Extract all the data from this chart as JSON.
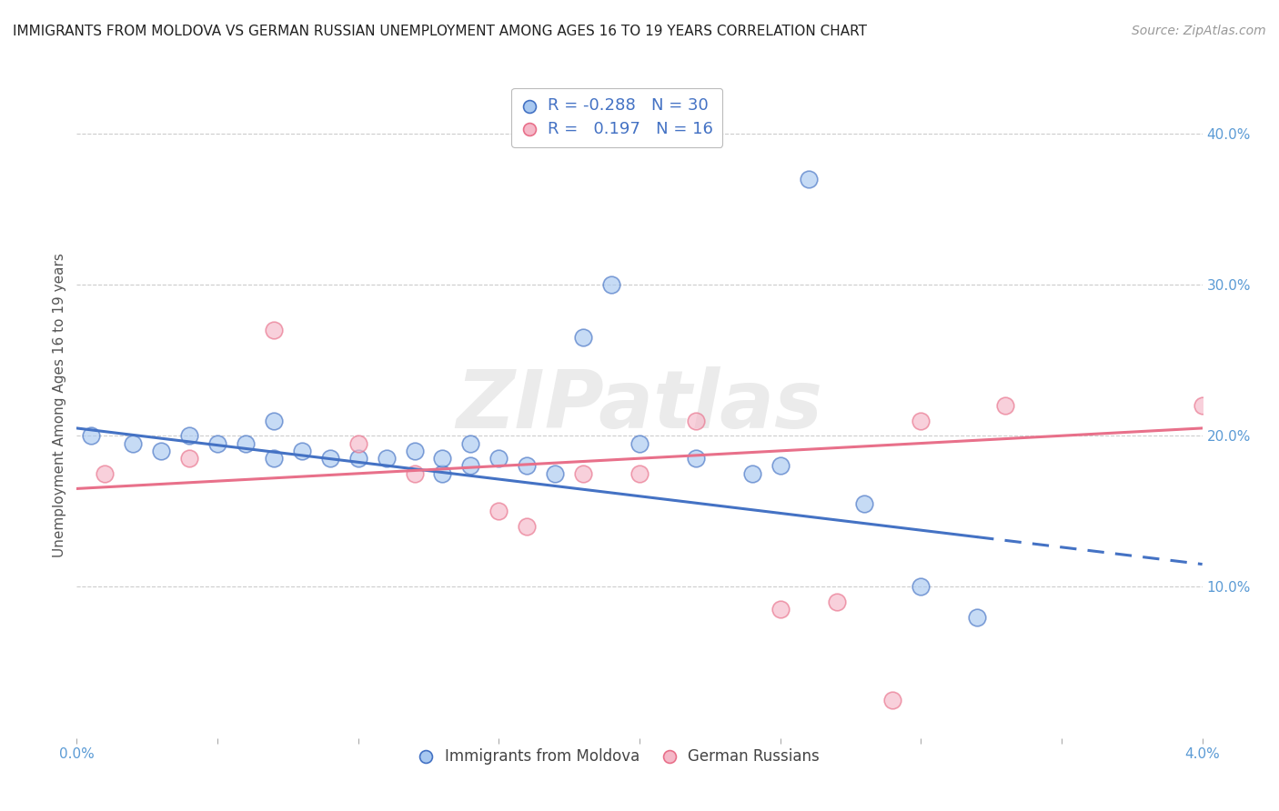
{
  "title": "IMMIGRANTS FROM MOLDOVA VS GERMAN RUSSIAN UNEMPLOYMENT AMONG AGES 16 TO 19 YEARS CORRELATION CHART",
  "source": "Source: ZipAtlas.com",
  "ylabel": "Unemployment Among Ages 16 to 19 years",
  "xlim": [
    0.0,
    0.04
  ],
  "ylim": [
    0.0,
    0.44
  ],
  "moldova_color": "#A8C8F0",
  "german_color": "#F5B8C8",
  "trendline_moldova_color": "#4472C4",
  "trendline_german_color": "#E8708A",
  "legend_R_moldova": "-0.288",
  "legend_N_moldova": "30",
  "legend_R_german": "0.197",
  "legend_N_german": "16",
  "watermark": "ZIPatlas",
  "moldova_x": [
    0.0005,
    0.002,
    0.003,
    0.004,
    0.005,
    0.006,
    0.007,
    0.007,
    0.008,
    0.009,
    0.01,
    0.011,
    0.012,
    0.013,
    0.013,
    0.014,
    0.014,
    0.015,
    0.016,
    0.017,
    0.018,
    0.019,
    0.02,
    0.022,
    0.024,
    0.025,
    0.026,
    0.028,
    0.03,
    0.032
  ],
  "moldova_y": [
    0.2,
    0.195,
    0.19,
    0.2,
    0.195,
    0.195,
    0.185,
    0.21,
    0.19,
    0.185,
    0.185,
    0.185,
    0.19,
    0.175,
    0.185,
    0.195,
    0.18,
    0.185,
    0.18,
    0.175,
    0.265,
    0.3,
    0.195,
    0.185,
    0.175,
    0.18,
    0.37,
    0.155,
    0.1,
    0.08
  ],
  "german_x": [
    0.001,
    0.004,
    0.007,
    0.01,
    0.012,
    0.015,
    0.016,
    0.018,
    0.02,
    0.022,
    0.025,
    0.027,
    0.029,
    0.03,
    0.033,
    0.04
  ],
  "german_y": [
    0.175,
    0.185,
    0.27,
    0.195,
    0.175,
    0.15,
    0.14,
    0.175,
    0.175,
    0.21,
    0.085,
    0.09,
    0.025,
    0.21,
    0.22,
    0.22
  ],
  "trendline_moldova_x0": 0.0,
  "trendline_moldova_x1": 0.04,
  "trendline_moldova_y0": 0.205,
  "trendline_moldova_y1": 0.115,
  "trendline_moldova_solid_end": 0.032,
  "trendline_german_x0": 0.0,
  "trendline_german_x1": 0.04,
  "trendline_german_y0": 0.165,
  "trendline_german_y1": 0.205,
  "xtick_positions": [
    0.0,
    0.005,
    0.01,
    0.015,
    0.02,
    0.025,
    0.03,
    0.035,
    0.04
  ],
  "ytick_right_positions": [
    0.1,
    0.2,
    0.3,
    0.4
  ],
  "ytick_right_labels": [
    "10.0%",
    "20.0%",
    "30.0%",
    "40.0%"
  ],
  "tick_color": "#5B9BD5",
  "grid_color": "#CCCCCC",
  "title_fontsize": 11,
  "source_fontsize": 10,
  "label_fontsize": 11,
  "tick_fontsize": 11,
  "scatter_size": 180,
  "scatter_alpha": 0.65,
  "scatter_linewidth": 1.2
}
